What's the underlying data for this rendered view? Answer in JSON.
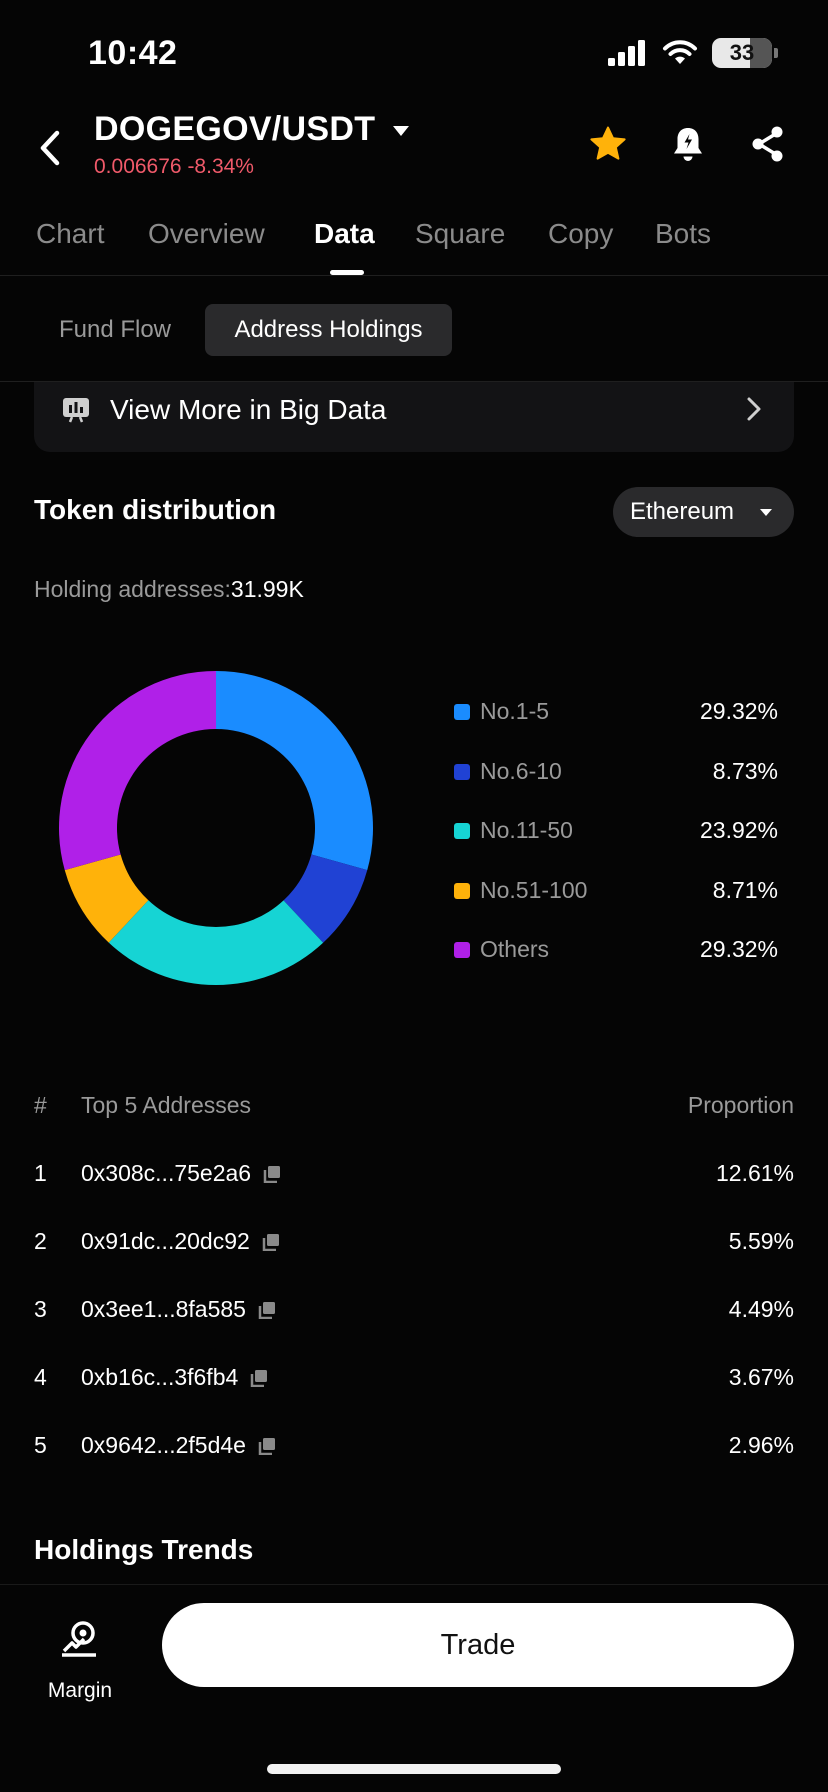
{
  "status": {
    "time": "10:42",
    "battery": "33"
  },
  "header": {
    "pair": "DOGEGOV/USDT",
    "price": "0.006676",
    "change": "-8.34%"
  },
  "tabs": [
    {
      "label": "Chart"
    },
    {
      "label": "Overview"
    },
    {
      "label": "Data"
    },
    {
      "label": "Square"
    },
    {
      "label": "Copy"
    },
    {
      "label": "Bots"
    }
  ],
  "subtabs": [
    {
      "label": "Fund Flow"
    },
    {
      "label": "Address Holdings"
    }
  ],
  "bigdata": {
    "label": "View More in Big Data"
  },
  "distribution": {
    "title": "Token distribution",
    "chain": "Ethereum",
    "holding_label": "Holding addresses:",
    "holding_value": "31.99K"
  },
  "chart_data": {
    "type": "pie",
    "categories": [
      "No.1-5",
      "No.6-10",
      "No.11-50",
      "No.51-100",
      "Others"
    ],
    "values": [
      29.32,
      8.73,
      23.92,
      8.71,
      29.32
    ],
    "value_labels": [
      "29.32%",
      "8.73%",
      "23.92%",
      "8.71%",
      "29.32%"
    ],
    "colors": [
      "#1a8cff",
      "#2042d4",
      "#16d4d4",
      "#ffb20a",
      "#b020e8"
    ],
    "title": "",
    "legend": "right"
  },
  "table": {
    "col_rank": "#",
    "col_address": "Top 5 Addresses",
    "col_proportion": "Proportion",
    "rows": [
      {
        "rank": "1",
        "address": "0x308c...75e2a6",
        "proportion": "12.61%"
      },
      {
        "rank": "2",
        "address": "0x91dc...20dc92",
        "proportion": "5.59%"
      },
      {
        "rank": "3",
        "address": "0x3ee1...8fa585",
        "proportion": "4.49%"
      },
      {
        "rank": "4",
        "address": "0xb16c...3f6fb4",
        "proportion": "3.67%"
      },
      {
        "rank": "5",
        "address": "0x9642...2f5d4e",
        "proportion": "2.96%"
      }
    ]
  },
  "trends": {
    "title": "Holdings Trends"
  },
  "bottom": {
    "margin_label": "Margin",
    "trade_label": "Trade"
  },
  "colors": {
    "accent_red": "#f05a6a",
    "star": "#ffb20a"
  }
}
